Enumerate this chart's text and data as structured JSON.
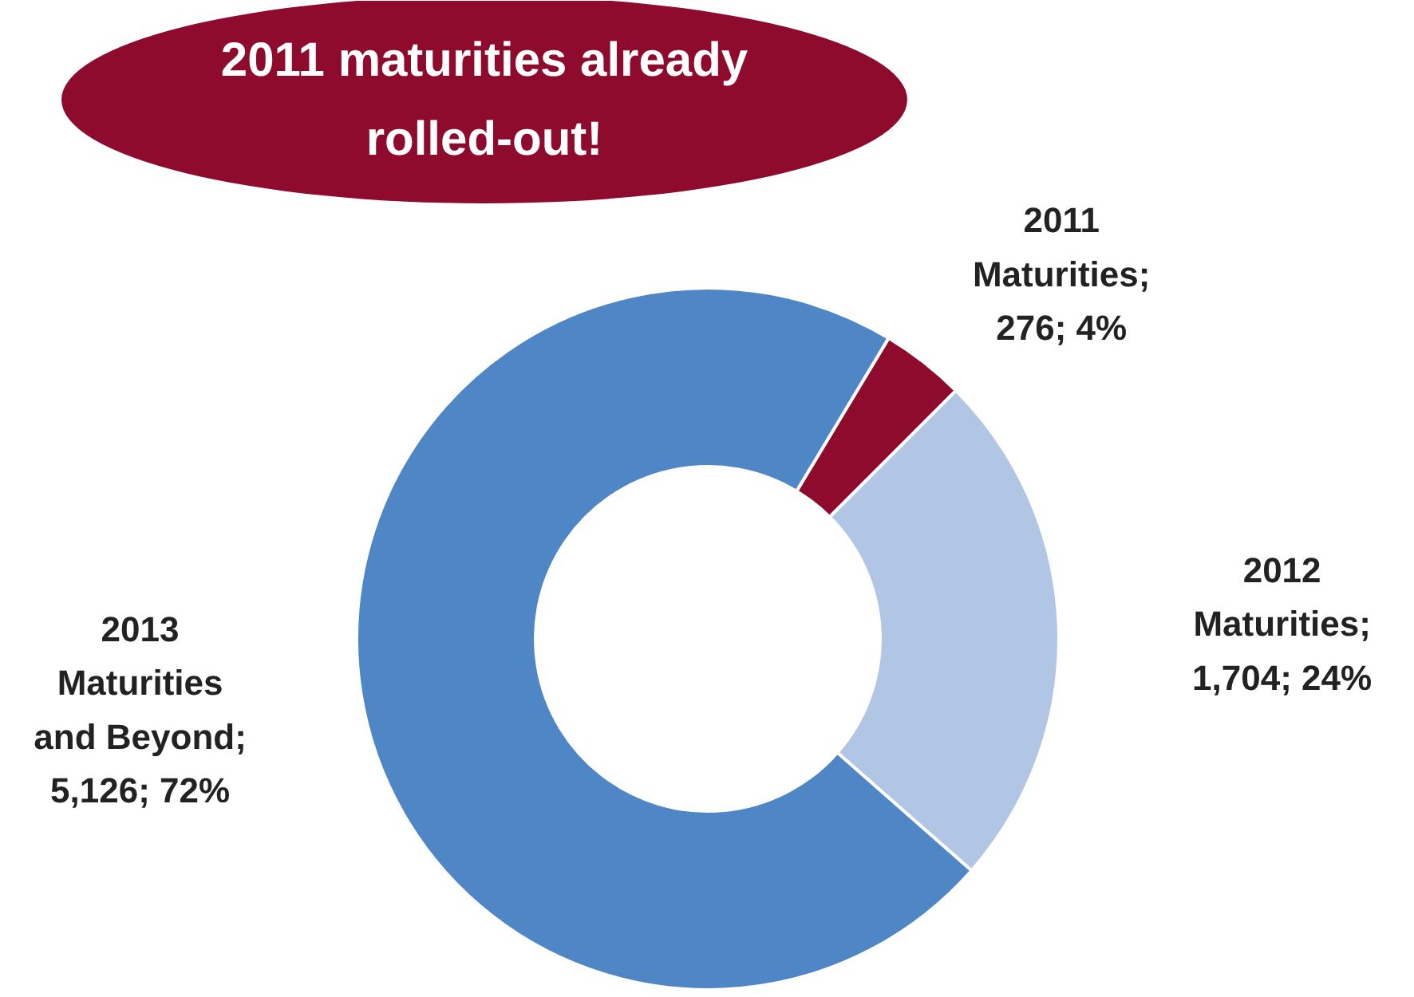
{
  "chart_data": {
    "type": "donut",
    "categories": [
      "2011 Maturities",
      "2012 Maturities",
      "2013 Maturities and Beyond"
    ],
    "values": [
      276,
      1704,
      5126
    ],
    "colors": [
      "#8f0b2e",
      "#b0c6e4",
      "#4f86c6"
    ],
    "value_labels": [
      "; 276; 4%",
      "; 1,704; 24%",
      "; 5,126; 72%"
    ],
    "annotations": [
      "2011 maturities already rolled-out!"
    ]
  }
}
